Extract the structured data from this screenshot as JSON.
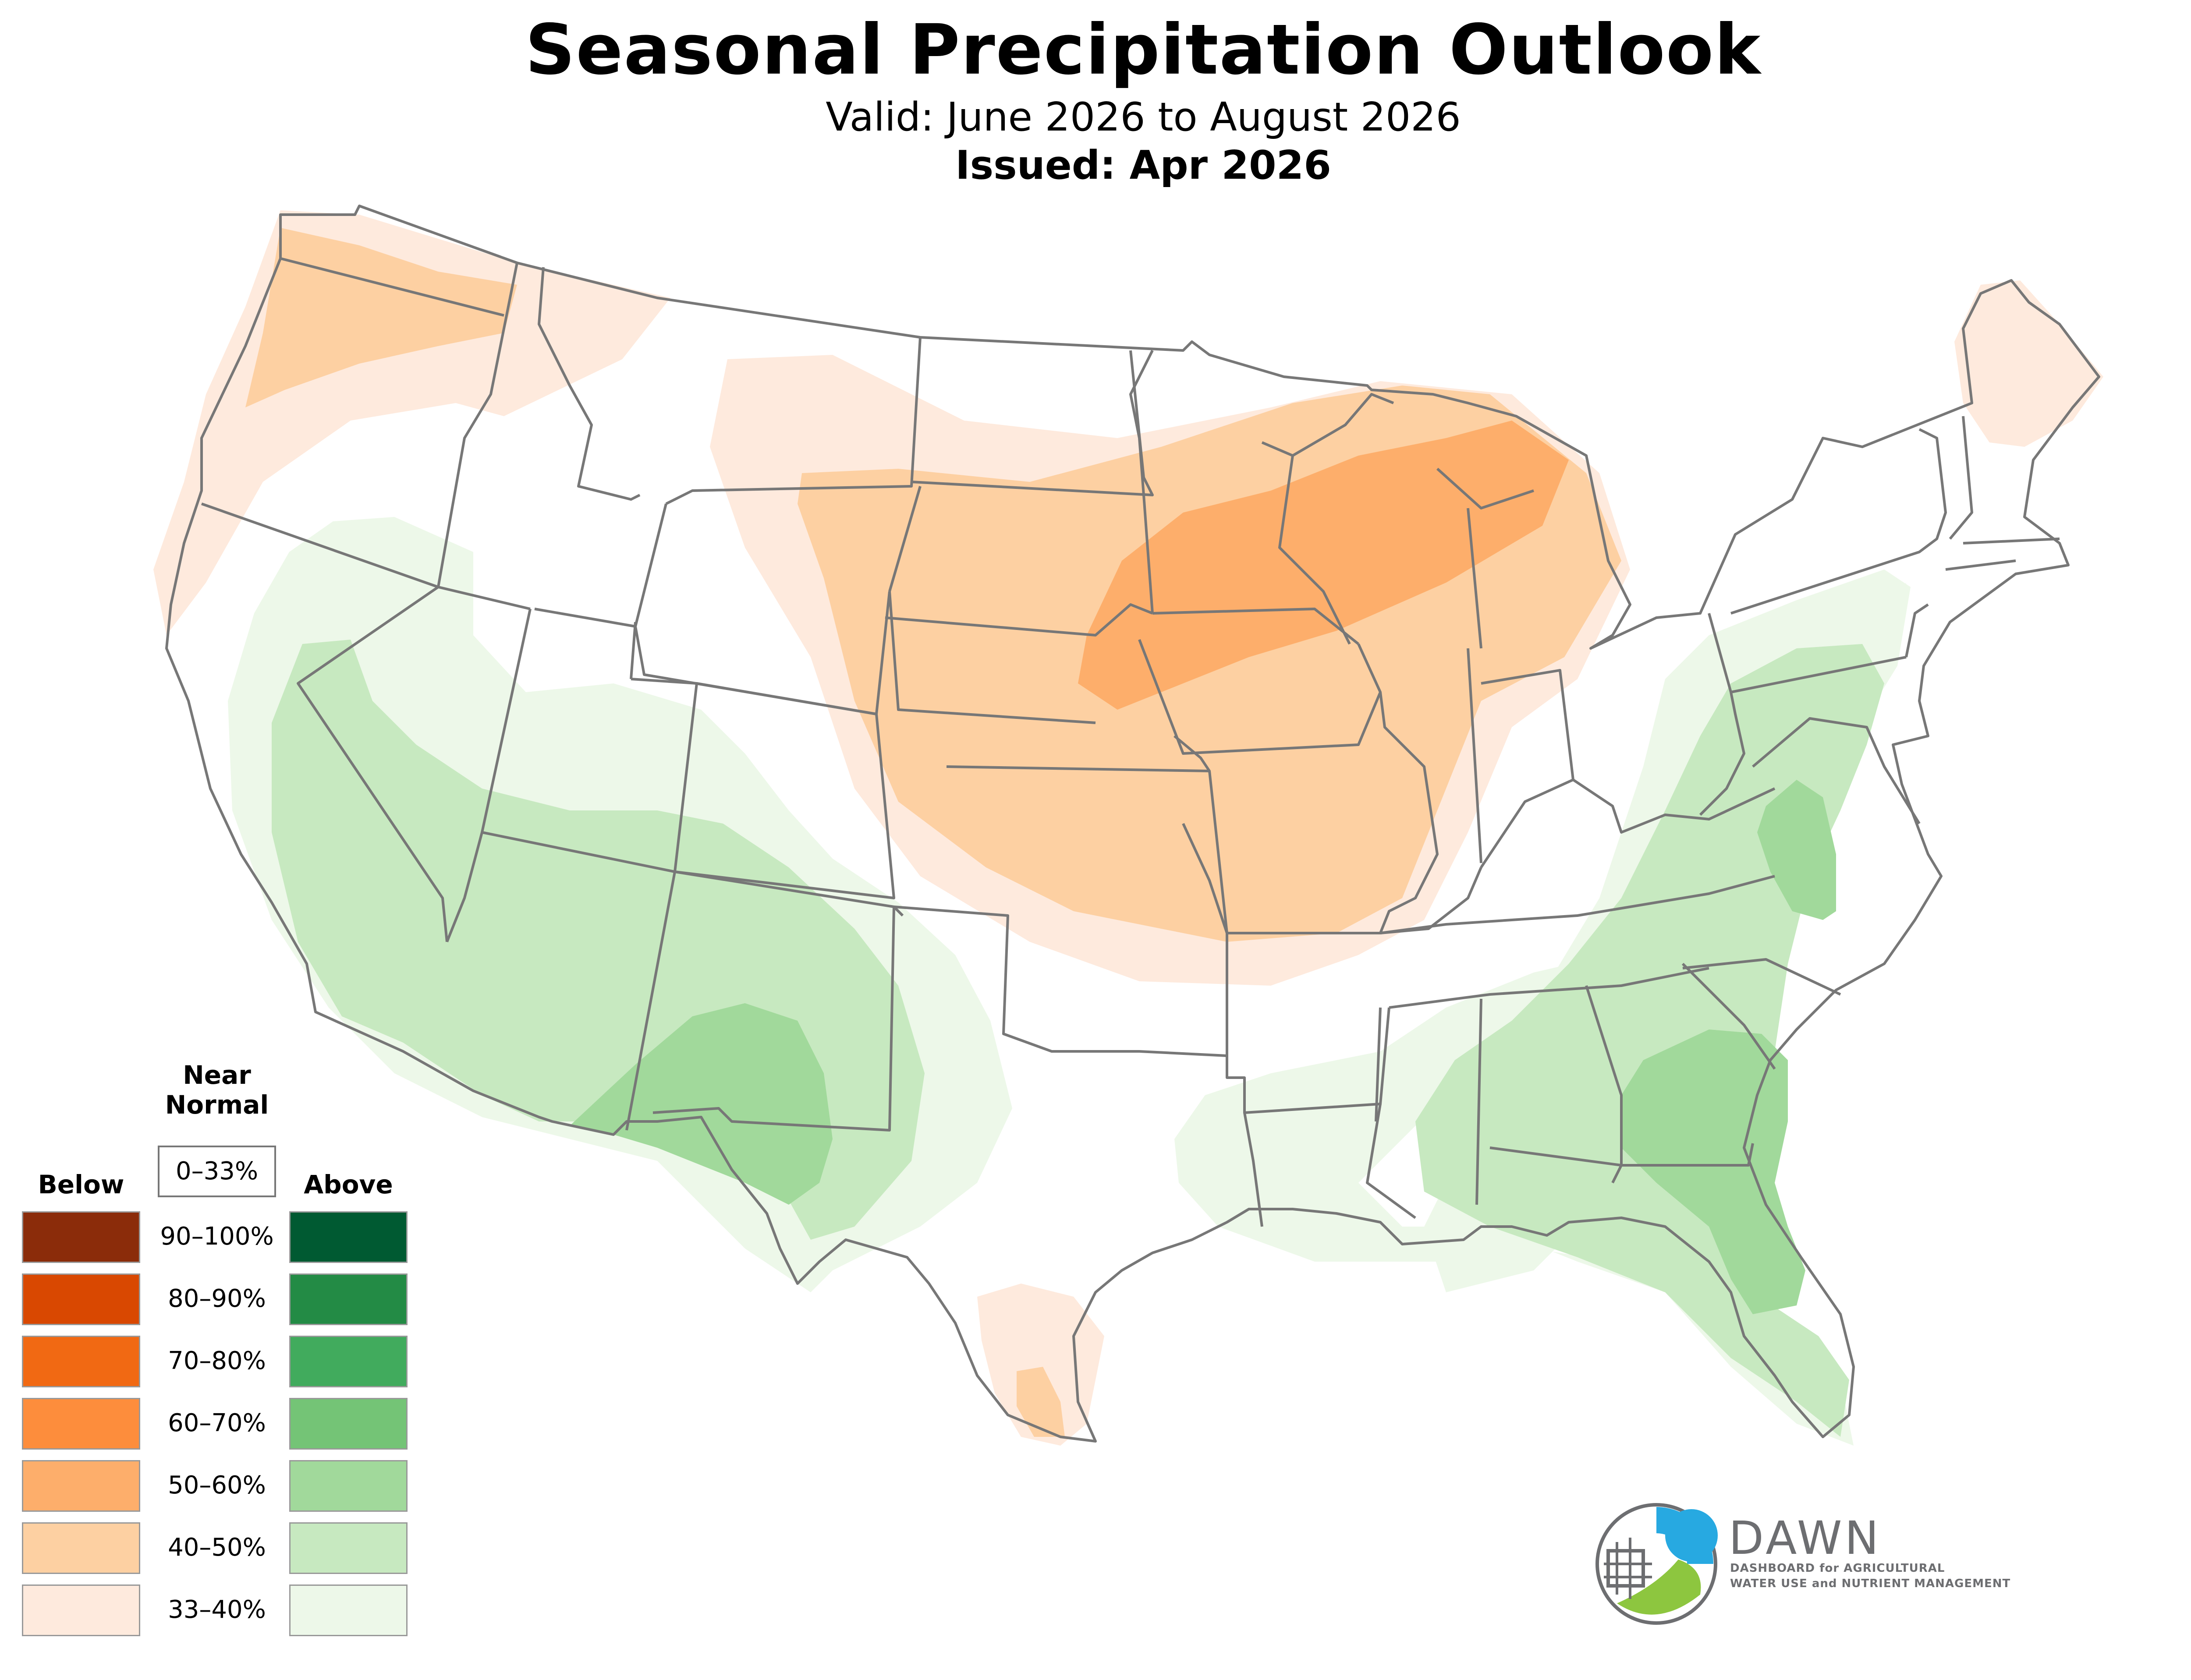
{
  "header": {
    "title": "Seasonal Precipitation Outlook",
    "valid": "Valid: June 2026 to August 2026",
    "issued": "Issued: Apr 2026"
  },
  "legend": {
    "below_label": "Below",
    "above_label": "Above",
    "near_normal_label_line1": "Near",
    "near_normal_label_line2": "Normal",
    "near_normal_range": "0–33%",
    "categories": [
      {
        "range": "90–100%",
        "below_color": "#8b2c0a",
        "above_color": "#005a32"
      },
      {
        "range": "80–90%",
        "below_color": "#d94801",
        "above_color": "#238b45"
      },
      {
        "range": "70–80%",
        "below_color": "#f16913",
        "above_color": "#41ab5d"
      },
      {
        "range": "60–70%",
        "below_color": "#fd8d3c",
        "above_color": "#74c476"
      },
      {
        "range": "50–60%",
        "below_color": "#fdae6b",
        "above_color": "#a1d99b"
      },
      {
        "range": "40–50%",
        "below_color": "#fdd0a2",
        "above_color": "#c7e9c0"
      },
      {
        "range": "33–40%",
        "below_color": "#feeadd",
        "above_color": "#edf8e9"
      }
    ]
  },
  "map": {
    "region": "Contiguous United States",
    "state_border_color": "#777777",
    "outlook_areas": [
      {
        "name": "pacific-northwest",
        "category": "below",
        "probability": "33–40%"
      },
      {
        "name": "washington-interior",
        "category": "below",
        "probability": "40–50%"
      },
      {
        "name": "northern-plains-midwest",
        "category": "below",
        "probability": "33–40%"
      },
      {
        "name": "central-plains-midwest",
        "category": "below",
        "probability": "40–50%"
      },
      {
        "name": "upper-midwest-core",
        "category": "below",
        "probability": "50–60%"
      },
      {
        "name": "south-texas",
        "category": "below",
        "probability": "33–40%"
      },
      {
        "name": "south-texas-core",
        "category": "below",
        "probability": "40–50%"
      },
      {
        "name": "maine",
        "category": "below",
        "probability": "33–40%"
      },
      {
        "name": "southwest",
        "category": "above",
        "probability": "33–40%"
      },
      {
        "name": "southwest-core",
        "category": "above",
        "probability": "40–50%"
      },
      {
        "name": "new-mexico-west-texas",
        "category": "above",
        "probability": "50–60%"
      },
      {
        "name": "east",
        "category": "above",
        "probability": "33–40%"
      },
      {
        "name": "southeast-core",
        "category": "above",
        "probability": "40–50%"
      },
      {
        "name": "virginia",
        "category": "above",
        "probability": "50–60%"
      },
      {
        "name": "georgia-florida",
        "category": "above",
        "probability": "50–60%"
      }
    ]
  },
  "logo": {
    "name": "DAWN",
    "tagline_line1": "DASHBOARD for AGRICULTURAL",
    "tagline_line2": "WATER USE and NUTRIENT MANAGEMENT"
  }
}
